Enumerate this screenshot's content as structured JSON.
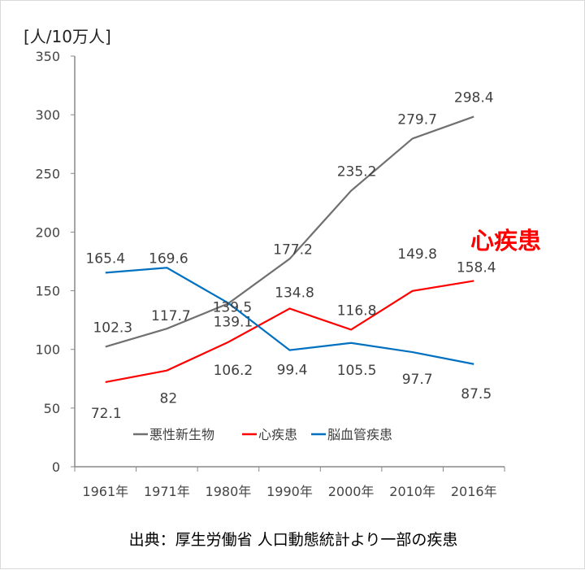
{
  "chart_data": {
    "type": "line",
    "ylabel": "[人/10万人]",
    "categories": [
      "1961年",
      "1971年",
      "1980年",
      "1990年",
      "2000年",
      "2010年",
      "2016年"
    ],
    "ylim": [
      0,
      350
    ],
    "yticks": [
      0,
      50,
      100,
      150,
      200,
      250,
      300,
      350
    ],
    "grid": false,
    "legend_position": "bottom-inside",
    "series": [
      {
        "name": "悪性新生物",
        "color": "#707070",
        "values": [
          102.3,
          117.7,
          139.1,
          177.2,
          235.2,
          279.7,
          298.4
        ]
      },
      {
        "name": "心疾患",
        "color": "#ff0000",
        "values": [
          72.1,
          82,
          106.2,
          134.8,
          116.8,
          149.8,
          158.4
        ]
      },
      {
        "name": "脳血管疾患",
        "color": "#0070c0",
        "values": [
          165.4,
          169.6,
          139.5,
          99.4,
          105.5,
          97.7,
          87.5
        ]
      }
    ],
    "annotation": "心疾患",
    "annotation_color": "#ff0000",
    "source": "出典：厚生労働省 人口動態統計より一部の疾患"
  }
}
